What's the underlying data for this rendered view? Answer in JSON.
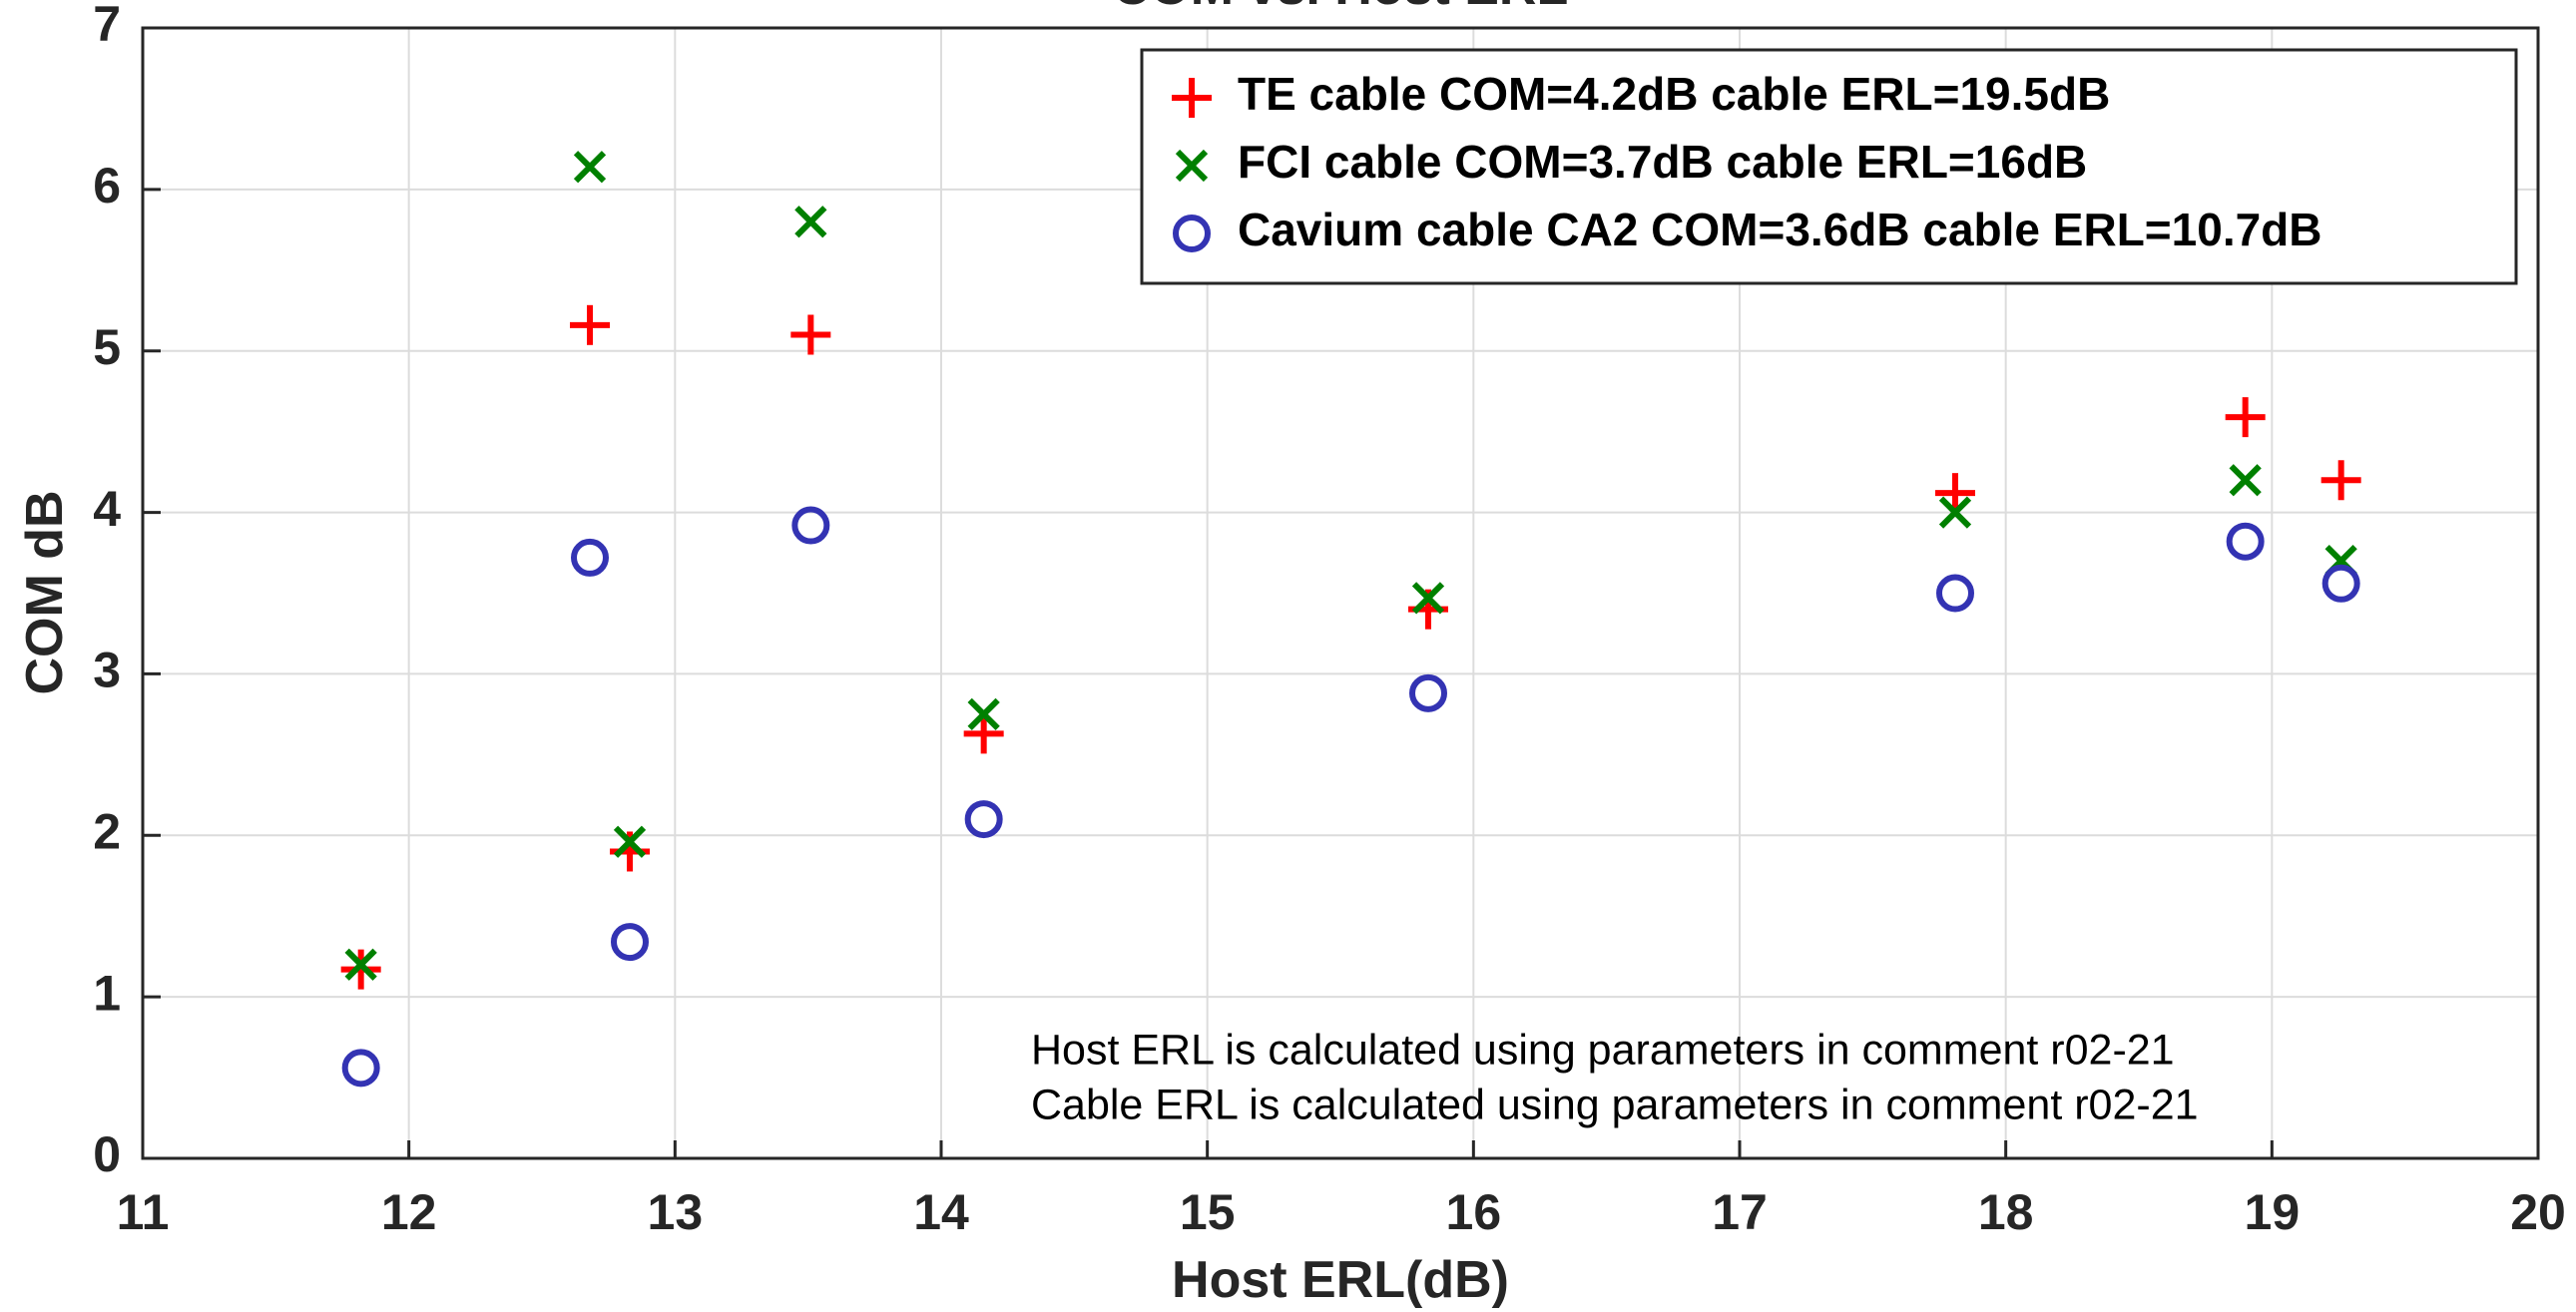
{
  "chart_data": {
    "type": "scatter",
    "title": "COM vs. Host ERL",
    "xlabel": "Host ERL(dB)",
    "ylabel": "COM dB",
    "xlim": [
      11,
      20
    ],
    "xticks": [
      11,
      12,
      13,
      14,
      15,
      16,
      17,
      18,
      19,
      20
    ],
    "ylim": [
      0,
      7
    ],
    "yticks": [
      0,
      1,
      2,
      3,
      4,
      5,
      6,
      7
    ],
    "grid": true,
    "legend": "upper right",
    "series": [
      {
        "name": "TE cable COM=4.2dB cable ERL=19.5dB",
        "color": "#ff0000",
        "marker": "+",
        "x": [
          11.82,
          12.68,
          12.83,
          13.51,
          14.16,
          15.83,
          17.81,
          18.9,
          19.26
        ],
        "values": [
          1.17,
          5.16,
          1.9,
          5.1,
          2.63,
          3.4,
          4.12,
          4.59,
          4.2
        ]
      },
      {
        "name": "FCI cable COM=3.7dB cable ERL=16dB",
        "color": "#008000",
        "marker": "x",
        "x": [
          11.82,
          12.68,
          12.83,
          13.51,
          14.16,
          15.83,
          17.81,
          18.9,
          19.26
        ],
        "values": [
          1.2,
          6.14,
          1.96,
          5.8,
          2.75,
          3.47,
          4.0,
          4.2,
          3.7
        ]
      },
      {
        "name": "Cavium cable CA2 COM=3.6dB cable ERL=10.7dB",
        "color": "#3333b3",
        "marker": "o",
        "x": [
          11.82,
          12.68,
          12.83,
          13.51,
          14.16,
          15.83,
          17.81,
          18.9,
          19.26
        ],
        "values": [
          0.56,
          3.72,
          1.34,
          3.92,
          2.1,
          2.88,
          3.5,
          3.82,
          3.56
        ]
      }
    ],
    "annotations": [
      "Host ERL is calculated using parameters in comment r02-21",
      "Cable ERL is calculated using parameters in comment r02-21"
    ]
  }
}
